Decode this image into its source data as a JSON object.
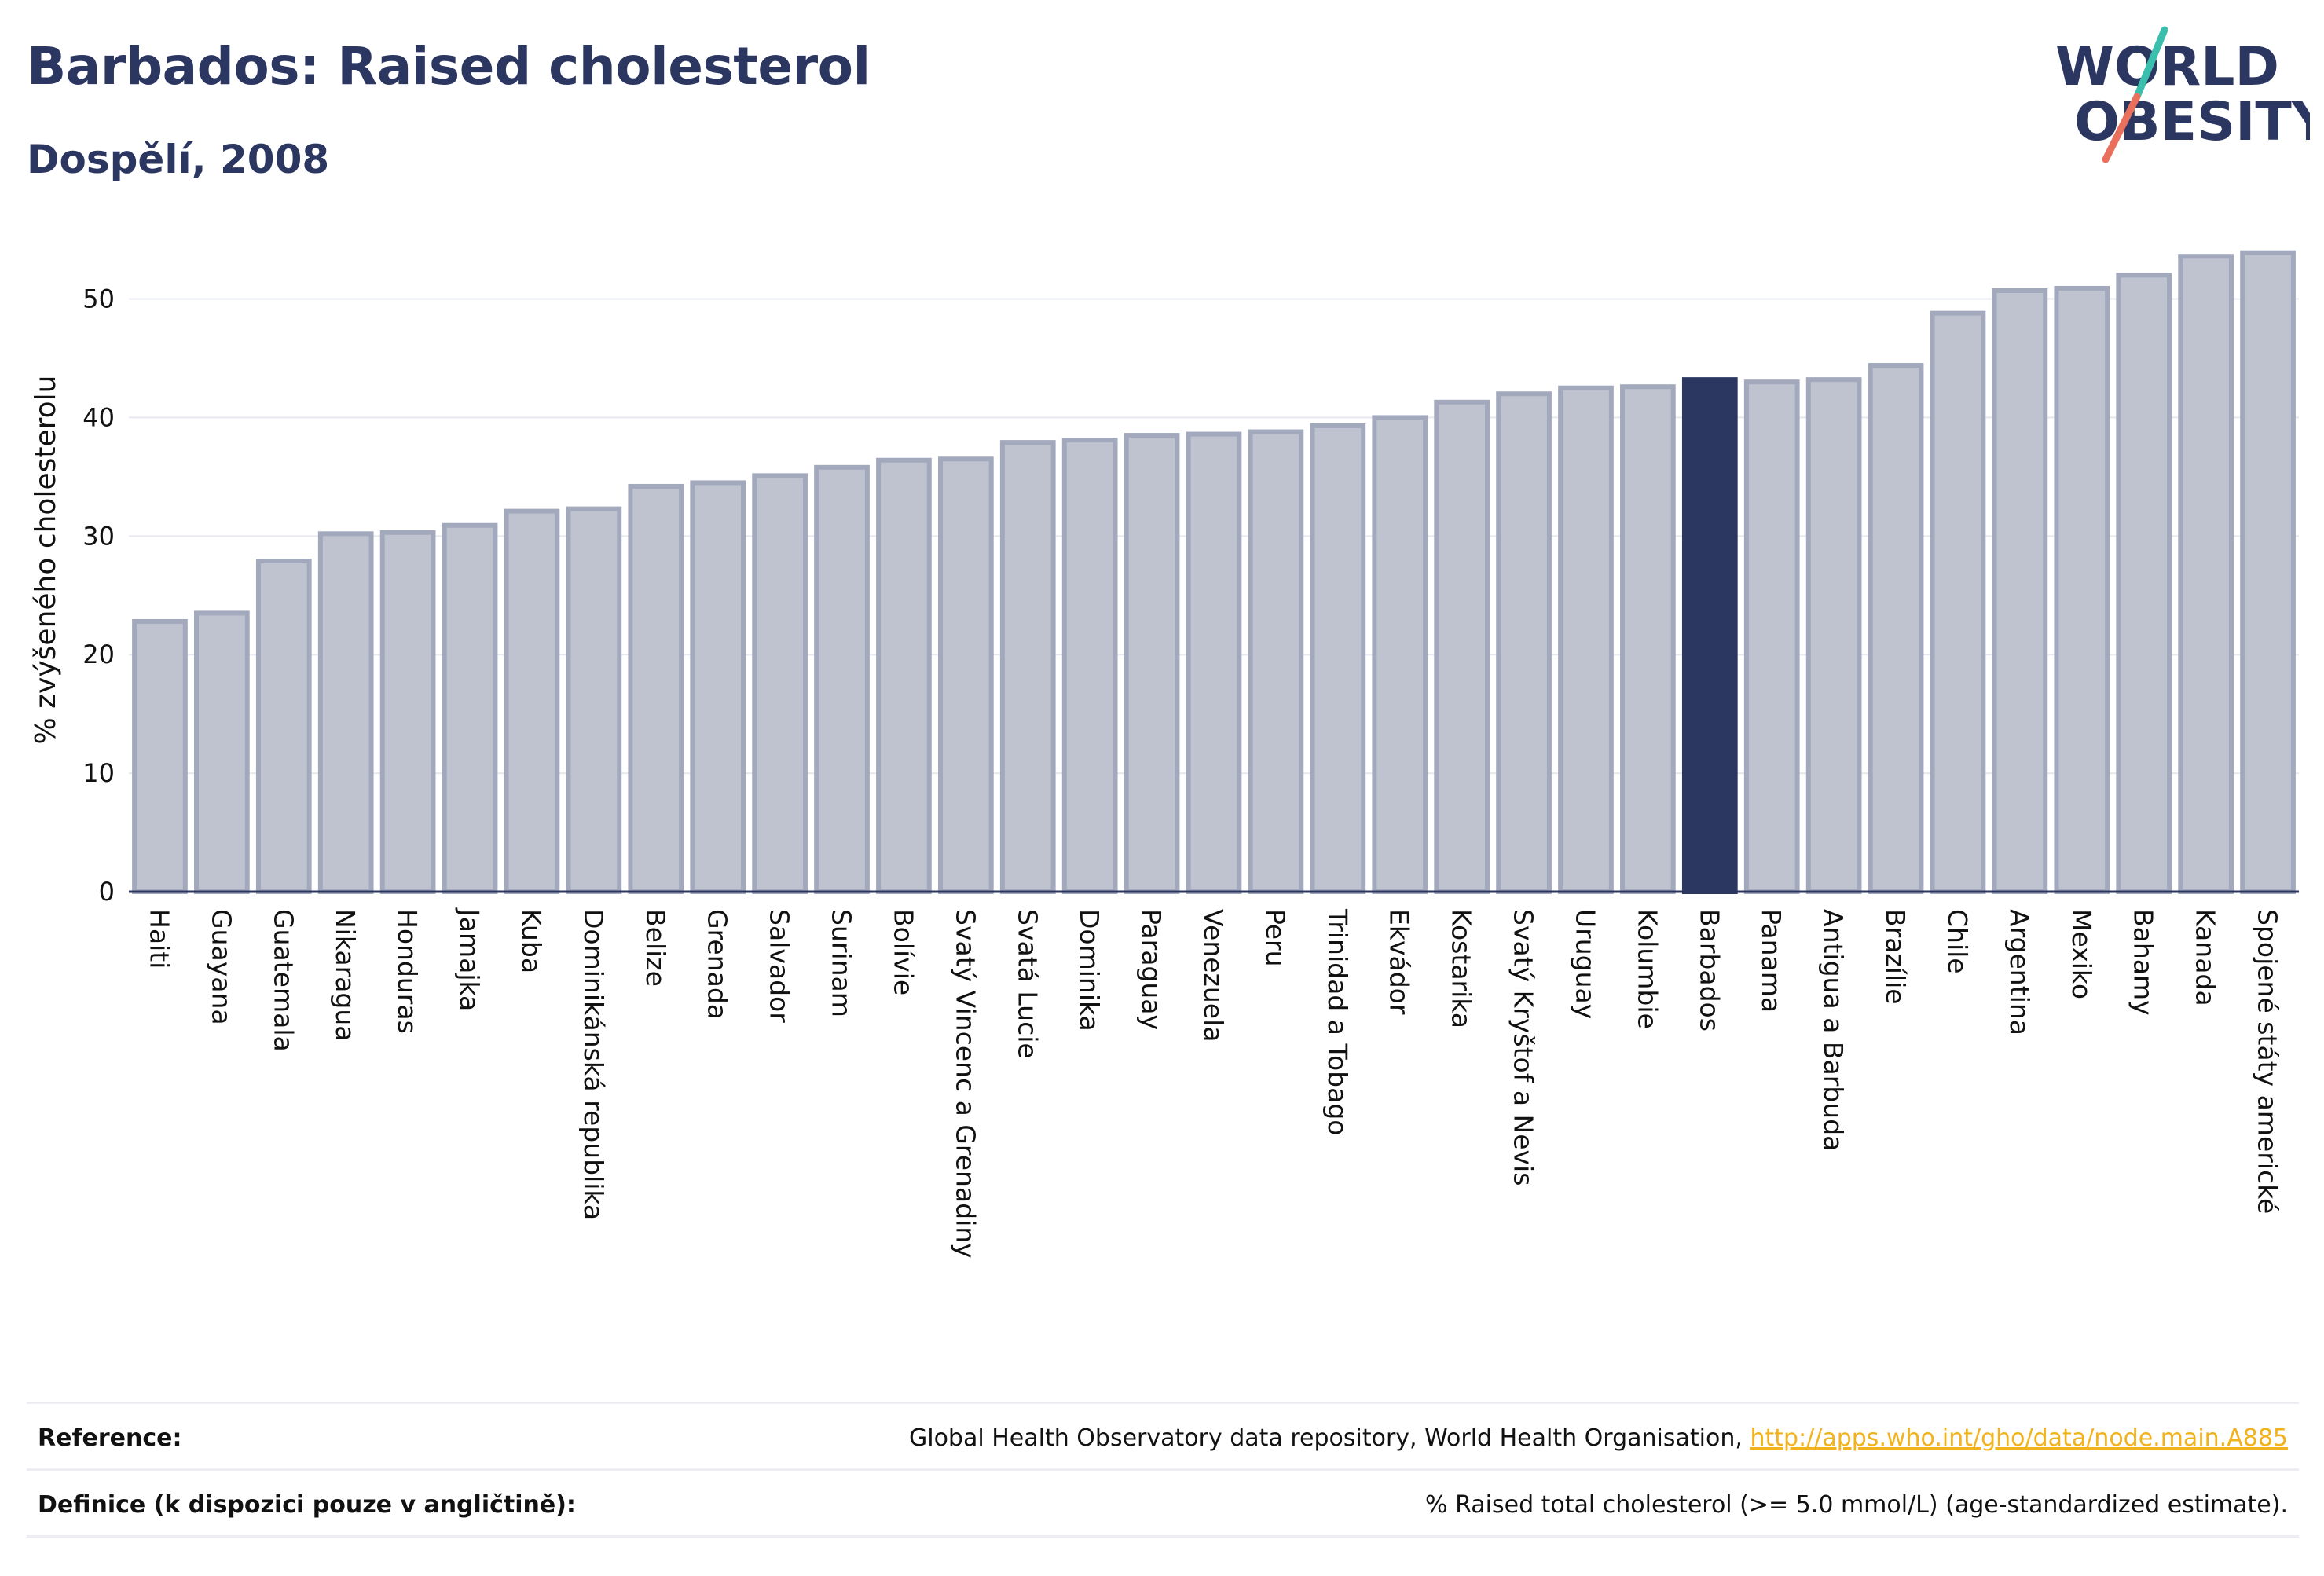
{
  "header": {
    "title": "Barbados: Raised cholesterol",
    "subtitle": "Dospělí, 2008"
  },
  "logo": {
    "line1": "WORLD",
    "line2": "OBESITY",
    "colors": {
      "text": "#2b3661",
      "slash_top": "#3bbfad",
      "slash_bottom": "#e8705d"
    }
  },
  "chart_data": {
    "type": "bar",
    "title": "",
    "xlabel": "",
    "ylabel": "% zvýšeného cholesterolu",
    "ylim": [
      0,
      56
    ],
    "yticks": [
      0,
      10,
      20,
      30,
      40,
      50
    ],
    "grid": true,
    "legend": "none",
    "highlight": "Barbados",
    "colors": {
      "bar": "#bfc3cf",
      "bar_edge": "#a3a9bd",
      "highlight": "#2b3661",
      "grid": "#e6e8ef",
      "axis": "#2b3661"
    },
    "categories": [
      "Haiti",
      "Guayana",
      "Guatemala",
      "Nikaragua",
      "Honduras",
      "Jamajka",
      "Kuba",
      "Dominikánská republika",
      "Belize",
      "Grenada",
      "Salvador",
      "Surinam",
      "Bolívie",
      "Svatý Vincenc a Grenadiny",
      "Svatá Lucie",
      "Dominika",
      "Paraguay",
      "Venezuela",
      "Peru",
      "Trinidad a Tobago",
      "Ekvádor",
      "Kostarika",
      "Svatý Kryštof a Nevis",
      "Uruguay",
      "Kolumbie",
      "Barbados",
      "Panama",
      "Antigua a Barbuda",
      "Brazílie",
      "Chile",
      "Argentina",
      "Mexiko",
      "Bahamy",
      "Kanada",
      "Spojené státy americké"
    ],
    "values": [
      22.8,
      23.5,
      27.9,
      30.2,
      30.3,
      30.9,
      32.1,
      32.3,
      34.2,
      34.5,
      35.1,
      35.8,
      36.4,
      36.5,
      37.9,
      38.1,
      38.5,
      38.6,
      38.8,
      39.3,
      40.0,
      41.3,
      42.0,
      42.5,
      42.6,
      43.2,
      43.0,
      43.2,
      44.4,
      48.8,
      50.7,
      50.9,
      52.0,
      53.6,
      53.9
    ]
  },
  "footer": {
    "reference_label": "Reference:",
    "reference_text": "Global Health Observatory data repository, World Health Organisation,",
    "reference_link": "http://apps.who.int/gho/data/node.main.A885",
    "definition_label": "Definice (k dispozici pouze v angličtině):",
    "definition_text": "% Raised total cholesterol (>= 5.0 mmol/L) (age-standardized estimate)."
  }
}
